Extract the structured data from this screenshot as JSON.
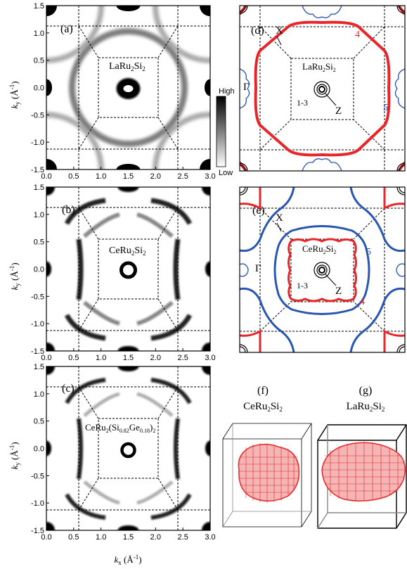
{
  "panels": {
    "a": {
      "label": "(a)",
      "compound": "LaRu",
      "sub1": "2",
      "mid": "Si",
      "sub2": "2"
    },
    "b": {
      "label": "(b)",
      "compound": "CeRu",
      "sub1": "2",
      "mid": "Si",
      "sub2": "2"
    },
    "c": {
      "label": "(c)",
      "compound": "CeRu",
      "sub1": "2",
      "open": "(Si",
      "sub_si": "0.82",
      "ge": "Ge",
      "sub_ge": "0.18",
      "close": ")",
      "sub_close": "2"
    },
    "d": {
      "label": "(d)",
      "compound": "LaRu",
      "sub1": "2",
      "mid": "Si",
      "sub2": "2",
      "band_red": "4",
      "band_blue": "5",
      "band_inner": "1-3",
      "pt_x": "X",
      "pt_gamma": "Γ",
      "pt_z": "Z"
    },
    "e": {
      "label": "(e)",
      "compound": "CeRu",
      "sub1": "2",
      "mid": "Si",
      "sub2": "2",
      "band_red": "4",
      "band_blue": "5",
      "band_inner": "1-3",
      "pt_x": "X",
      "pt_gamma": "Γ",
      "pt_z": "Z"
    },
    "f": {
      "label": "(f)",
      "compound": "CeRu",
      "sub1": "2",
      "mid": "Si",
      "sub2": "2"
    },
    "g": {
      "label": "(g)",
      "compound": "LaRu",
      "sub1": "2",
      "mid": "Si",
      "sub2": "2"
    }
  },
  "axes": {
    "x_ticks": [
      "0.0",
      "0.5",
      "1.0",
      "1.5",
      "2.0",
      "2.5",
      "3.0"
    ],
    "y_ticks": [
      "1.5",
      "1.0",
      "0.5",
      "0.0",
      "-0.5",
      "-1.0",
      "-1.5"
    ],
    "ylabel_k": "k",
    "ylabel_sub": "y",
    "ylabel_unit": "(Å",
    "ylabel_exp": "-1",
    "ylabel_close": ")",
    "xlabel_k": "k",
    "xlabel_sub": "x",
    "xlabel_unit": "(Å",
    "xlabel_exp": "-1",
    "xlabel_close": ")"
  },
  "colorbar": {
    "high": "High",
    "low": "Low"
  },
  "colors": {
    "red": "#e8262a",
    "blue": "#2a55b0",
    "black": "#000000"
  }
}
